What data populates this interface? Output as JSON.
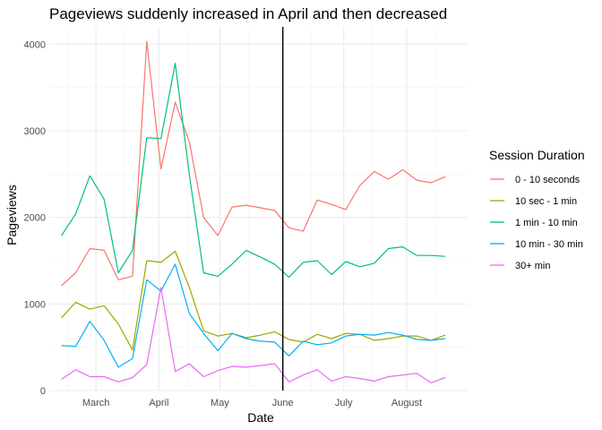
{
  "chart_data": {
    "type": "line",
    "title": "Pageviews suddenly increased in April and then decreased",
    "xlabel": "Date",
    "ylabel": "Pageviews",
    "ylim": [
      0,
      4200
    ],
    "yticks": [
      0,
      1000,
      2000,
      3000,
      4000
    ],
    "month_ticks": [
      {
        "label": "March",
        "date": "2017-03-01"
      },
      {
        "label": "April",
        "date": "2017-04-01"
      },
      {
        "label": "May",
        "date": "2017-05-01"
      },
      {
        "label": "June",
        "date": "2017-06-01"
      },
      {
        "label": "July",
        "date": "2017-07-01"
      },
      {
        "label": "August",
        "date": "2017-08-01"
      }
    ],
    "xlim": [
      "2017-02-06",
      "2017-08-31"
    ],
    "vline": "2017-06-01",
    "grid": true,
    "legend_title": "Session Duration",
    "legend_position": "right",
    "x": [
      "2017-02-12",
      "2017-02-19",
      "2017-02-26",
      "2017-03-05",
      "2017-03-12",
      "2017-03-19",
      "2017-03-26",
      "2017-04-02",
      "2017-04-09",
      "2017-04-16",
      "2017-04-23",
      "2017-04-30",
      "2017-05-07",
      "2017-05-14",
      "2017-05-21",
      "2017-05-28",
      "2017-06-04",
      "2017-06-11",
      "2017-06-18",
      "2017-06-25",
      "2017-07-02",
      "2017-07-09",
      "2017-07-16",
      "2017-07-23",
      "2017-07-30",
      "2017-08-06",
      "2017-08-13",
      "2017-08-20",
      "2017-08-27"
    ],
    "series": [
      {
        "name": "0 - 10 seconds",
        "color": "#F8766D",
        "values": [
          1210,
          1360,
          1640,
          1620,
          1280,
          1320,
          4030,
          2560,
          3330,
          2870,
          2000,
          1790,
          2120,
          2140,
          2110,
          2080,
          1880,
          1840,
          2200,
          2150,
          2090,
          2370,
          2530,
          2440,
          2550,
          2430,
          2400,
          2470,
          null
        ]
      },
      {
        "name": "10 sec - 1 min",
        "color": "#A3A500",
        "values": [
          840,
          1020,
          940,
          980,
          770,
          470,
          1500,
          1480,
          1610,
          1190,
          690,
          630,
          660,
          610,
          640,
          680,
          590,
          560,
          650,
          600,
          660,
          650,
          580,
          600,
          630,
          630,
          580,
          640,
          null
        ]
      },
      {
        "name": "1 min - 10 min",
        "color": "#00BF7D",
        "values": [
          1790,
          2040,
          2480,
          2210,
          1360,
          1620,
          2920,
          2910,
          3780,
          2490,
          1360,
          1320,
          1460,
          1620,
          1540,
          1460,
          1310,
          1480,
          1500,
          1340,
          1490,
          1430,
          1470,
          1640,
          1660,
          1560,
          1560,
          1550,
          null
        ]
      },
      {
        "name": "10 min - 30 min",
        "color": "#00B0F6",
        "values": [
          520,
          510,
          800,
          580,
          270,
          370,
          1280,
          1150,
          1460,
          890,
          660,
          460,
          660,
          600,
          570,
          560,
          400,
          570,
          530,
          550,
          630,
          650,
          640,
          670,
          640,
          590,
          580,
          600,
          null
        ]
      },
      {
        "name": "30+ min",
        "color": "#E76BF3",
        "values": [
          130,
          240,
          160,
          160,
          100,
          150,
          300,
          1190,
          220,
          310,
          160,
          230,
          280,
          270,
          290,
          310,
          100,
          180,
          240,
          110,
          160,
          140,
          110,
          160,
          180,
          200,
          90,
          150,
          null
        ]
      }
    ]
  }
}
